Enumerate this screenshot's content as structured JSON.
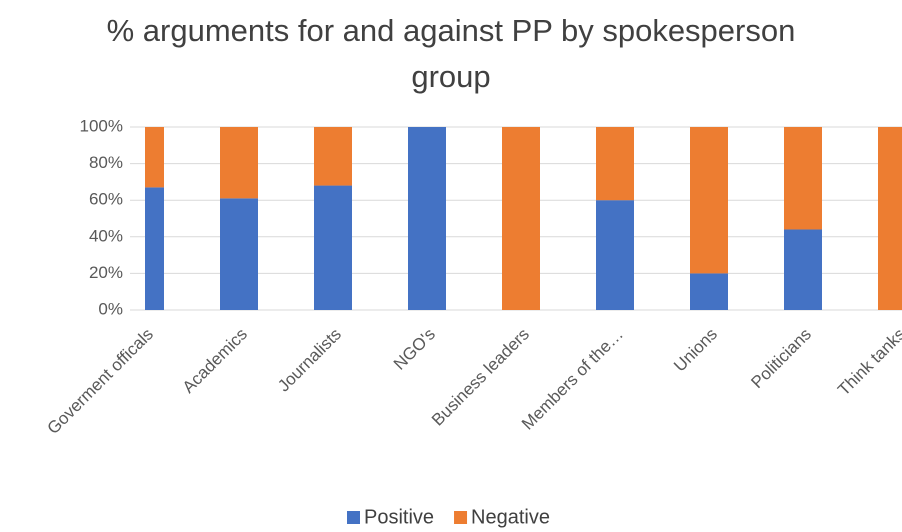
{
  "chart_data": {
    "type": "stacked_bar",
    "title": "% arguments for and against PP by spokesperson group",
    "categories": [
      "Goverment officals",
      "Academics",
      "Journalists",
      "NGO's",
      "Business leaders",
      "Members of the…",
      "Unions",
      "Politicians",
      "Think tanks"
    ],
    "series": [
      {
        "name": "Positive",
        "color": "#4472c4",
        "values": [
          67,
          61,
          68,
          100,
          0,
          60,
          20,
          44,
          0
        ]
      },
      {
        "name": "Negative",
        "color": "#ed7d31",
        "values": [
          33,
          39,
          32,
          0,
          100,
          40,
          80,
          56,
          100
        ]
      }
    ],
    "ylim": [
      0,
      100
    ],
    "yticks": [
      {
        "value": 0,
        "label": "0%"
      },
      {
        "value": 20,
        "label": "20%"
      },
      {
        "value": 40,
        "label": "40%"
      },
      {
        "value": 60,
        "label": "60%"
      },
      {
        "value": 80,
        "label": "80%"
      },
      {
        "value": 100,
        "label": "100%"
      }
    ],
    "grid": true,
    "legend": "bottom"
  }
}
